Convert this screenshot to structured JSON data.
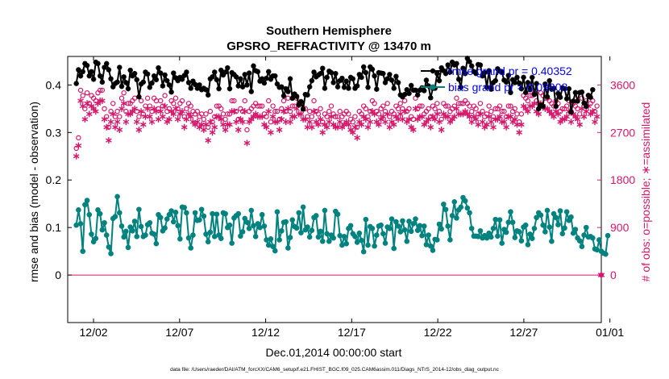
{
  "chart_data": {
    "type": "line",
    "title": "Southern Hemisphere",
    "subtitle": "GPSRO_REFRACTIVITY @ 13470 m",
    "xlabel": "Dec.01,2014 00:00:00 start",
    "ylabel": "rmse and bias (model - observation)",
    "y2label": "# of obs: o=possible; ∗=assimilated",
    "footer": "data file: /Users/raeder/DAI/ATM_forcXX/CAM6_setup/f.e21.FHIST_BGC.f09_025.CAM6assim.011/Diags_NTrS_2014-12/obs_diag_output.nc",
    "xlim": [
      0.5,
      31.5
    ],
    "ylim": [
      -0.1,
      0.46
    ],
    "y2lim": [
      -900,
      4140
    ],
    "x_ticks": [
      2,
      7,
      12,
      17,
      22,
      27,
      32
    ],
    "x_tick_labels": [
      "12/02",
      "12/07",
      "12/12",
      "12/17",
      "12/22",
      "12/27",
      "01/01"
    ],
    "y_ticks": [
      0,
      0.1,
      0.2,
      0.3,
      0.4
    ],
    "y_tick_labels": [
      "0",
      "0.1",
      "0.2",
      "0.3",
      "0.4"
    ],
    "y2_ticks": [
      0,
      900,
      1800,
      2700,
      3600
    ],
    "y2_tick_labels": [
      "0",
      "900",
      "1800",
      "2700",
      "3600"
    ],
    "legend": [
      {
        "label": "rmse grand pr = 0.40352",
        "color": "#000000"
      },
      {
        "label": "bias grand pr = 0.09908",
        "color": "#00827f"
      }
    ],
    "legend_text_color": "#0000ff",
    "colors": {
      "rmse": "#000000",
      "bias": "#00827f",
      "obs": "#d6176b",
      "zero": "#d6176b"
    },
    "rmse": {
      "name": "rmse",
      "values": [
        0.403,
        0.432,
        0.419,
        0.428,
        0.445,
        0.441,
        0.419,
        0.428,
        0.412,
        0.448,
        0.445,
        0.419,
        0.406,
        0.437,
        0.445,
        0.432,
        0.413,
        0.396,
        0.403,
        0.406,
        0.437,
        0.397,
        0.417,
        0.405,
        0.392,
        0.431,
        0.419,
        0.424,
        0.411,
        0.375,
        0.402,
        0.406,
        0.427,
        0.423,
        0.395,
        0.404,
        0.419,
        0.411,
        0.436,
        0.425,
        0.398,
        0.421,
        0.409,
        0.4,
        0.385,
        0.425,
        0.415,
        0.409,
        0.416,
        0.412,
        0.42,
        0.427,
        0.405,
        0.393,
        0.408,
        0.401,
        0.393,
        0.4,
        0.39,
        0.393,
        0.39,
        0.379,
        0.413,
        0.417,
        0.427,
        0.411,
        0.392,
        0.431,
        0.421,
        0.427,
        0.436,
        0.392,
        0.426,
        0.422,
        0.417,
        0.398,
        0.413,
        0.396,
        0.422,
        0.4,
        0.425,
        0.386,
        0.44,
        0.43,
        0.428,
        0.408,
        0.413,
        0.404,
        0.414,
        0.428,
        0.412,
        0.419,
        0.419,
        0.402,
        0.395,
        0.396,
        0.377,
        0.392,
        0.386,
        0.413,
        0.372,
        0.381,
        0.376,
        0.358,
        0.365,
        0.349,
        0.38,
        0.379,
        0.396,
        0.409,
        0.427,
        0.417,
        0.421,
        0.424,
        0.435,
        0.393,
        0.416,
        0.429,
        0.426,
        0.405,
        0.424,
        0.396,
        0.409,
        0.414,
        0.395,
        0.408,
        0.393,
        0.416,
        0.413,
        0.393,
        0.398,
        0.422,
        0.416,
        0.438,
        0.426,
        0.395,
        0.438,
        0.433,
        0.419,
        0.391,
        0.426,
        0.425,
        0.424,
        0.405,
        0.413,
        0.422,
        0.41,
        0.393,
        0.418,
        0.405,
        0.379,
        0.375,
        0.38,
        0.39,
        0.382,
        0.399,
        0.389,
        0.389,
        0.379,
        0.389,
        0.394,
        0.388,
        0.41,
        0.398,
        0.373,
        0.393,
        0.393,
        0.424,
        0.409,
        0.436,
        0.43,
        0.424,
        0.442,
        0.427,
        0.448,
        0.442,
        0.445,
        0.412,
        0.395,
        0.435,
        0.424,
        0.456,
        0.449,
        0.44,
        0.428,
        0.424,
        0.443,
        0.442,
        0.419,
        0.426,
        0.395,
        0.43,
        0.391,
        0.405,
        0.409,
        0.434,
        0.429,
        0.427,
        0.41,
        0.406,
        0.42,
        0.384,
        0.411,
        0.405,
        0.416,
        0.404,
        0.392,
        0.416,
        0.384,
        0.405,
        0.39,
        0.416,
        0.38,
        0.403,
        0.35,
        0.358,
        0.355,
        0.402,
        0.375,
        0.409,
        0.391,
        0.393,
        0.355,
        0.382,
        0.374,
        0.394,
        0.392,
        0.371,
        0.392,
        0.343,
        0.366,
        0.384,
        0.366,
        0.384,
        0.385,
        0.362,
        0.355,
        0.378,
        0.374,
        0.39
      ]
    },
    "bias": {
      "name": "bias",
      "values": [
        0.105,
        0.137,
        0.108,
        0.05,
        0.148,
        0.157,
        0.127,
        0.086,
        0.07,
        0.077,
        0.137,
        0.129,
        0.095,
        0.11,
        0.084,
        0.059,
        0.045,
        0.119,
        0.123,
        0.165,
        0.131,
        0.103,
        0.08,
        0.092,
        0.058,
        0.101,
        0.093,
        0.113,
        0.081,
        0.138,
        0.102,
        0.081,
        0.084,
        0.106,
        0.11,
        0.088,
        0.086,
        0.066,
        0.127,
        0.121,
        0.093,
        0.099,
        0.118,
        0.127,
        0.135,
        0.112,
        0.132,
        0.104,
        0.076,
        0.143,
        0.142,
        0.131,
        0.078,
        0.057,
        0.084,
        0.131,
        0.115,
        0.116,
        0.138,
        0.124,
        0.086,
        0.07,
        0.09,
        0.129,
        0.081,
        0.128,
        0.084,
        0.077,
        0.131,
        0.129,
        0.1,
        0.105,
        0.067,
        0.12,
        0.125,
        0.129,
        0.082,
        0.091,
        0.119,
        0.111,
        0.098,
        0.136,
        0.104,
        0.081,
        0.108,
        0.1,
        0.127,
        0.103,
        0.074,
        0.063,
        0.076,
        0.06,
        0.051,
        0.133,
        0.074,
        0.093,
        0.111,
        0.112,
        0.057,
        0.079,
        0.116,
        0.102,
        0.099,
        0.131,
        0.089,
        0.143,
        0.095,
        0.101,
        0.08,
        0.094,
        0.121,
        0.125,
        0.08,
        0.092,
        0.071,
        0.136,
        0.087,
        0.071,
        0.084,
        0.078,
        0.134,
        0.128,
        0.083,
        0.063,
        0.081,
        0.066,
        0.098,
        0.104,
        0.087,
        0.081,
        0.069,
        0.088,
        0.073,
        0.049,
        0.117,
        0.063,
        0.102,
        0.098,
        0.061,
        0.084,
        0.103,
        0.105,
        0.087,
        0.067,
        0.101,
        0.098,
        0.118,
        0.056,
        0.112,
        0.103,
        0.091,
        0.114,
        0.095,
        0.071,
        0.113,
        0.092,
        0.108,
        0.118,
        0.094,
        0.104,
        0.083,
        0.103,
        0.064,
        0.084,
        0.061,
        0.052,
        0.075,
        0.074,
        0.107,
        0.097,
        0.149,
        0.138,
        0.103,
        0.074,
        0.125,
        0.154,
        0.12,
        0.137,
        0.143,
        0.163,
        0.156,
        0.141,
        0.131,
        0.098,
        0.082,
        0.082,
        0.081,
        0.093,
        0.078,
        0.083,
        0.078,
        0.088,
        0.08,
        0.098,
        0.117,
        0.082,
        0.116,
        0.067,
        0.096,
        0.09,
        0.111,
        0.133,
        0.111,
        0.079,
        0.093,
        0.091,
        0.072,
        0.101,
        0.105,
        0.064,
        0.086,
        0.077,
        0.098,
        0.121,
        0.131,
        0.126,
        0.105,
        0.091,
        0.136,
        0.101,
        0.071,
        0.129,
        0.121,
        0.106,
        0.135,
        0.087,
        0.099,
        0.133,
        0.115,
        0.122,
        0.088,
        0.096,
        0.078,
        0.072,
        0.06,
        0.084,
        0.1,
        0.08,
        0.081,
        0.078,
        0.055,
        0.053,
        0.074,
        0.05,
        0.046,
        0.044,
        0.083
      ]
    },
    "obs_possible": {
      "name": "possible",
      "values": [
        2400,
        2600,
        3500,
        3400,
        3150,
        3450,
        3250,
        3400,
        3350,
        3300,
        3450,
        3500,
        3500,
        3150,
        3000,
        2800,
        3100,
        3250,
        3000,
        3100,
        3000,
        3350,
        3450,
        3100,
        3250,
        3250,
        3300,
        3350,
        3100,
        3000,
        3300,
        3050,
        3200,
        3350,
        3200,
        3100,
        3350,
        3300,
        3150,
        3300,
        3200,
        3400,
        3100,
        3150,
        3300,
        3250,
        3350,
        3150,
        3250,
        3300,
        3000,
        3150,
        3250,
        3200,
        3100,
        3050,
        3100,
        3000,
        3050,
        2950,
        3050,
        2800,
        3100,
        2900,
        3000,
        3200,
        3200,
        3150,
        3050,
        2950,
        3050,
        3050,
        3300,
        3300,
        3100,
        2950,
        3150,
        3100,
        3300,
        2750,
        3100,
        3150,
        3200,
        3250,
        3200,
        3200,
        3200,
        3050,
        3000,
        3300,
        2900,
        3200,
        3100,
        3100,
        2950,
        3150,
        3300,
        3100,
        3350,
        3100,
        3200,
        3200,
        3350,
        3250,
        3250,
        3150,
        3150,
        3000,
        3100,
        3000,
        3300,
        3100,
        3050,
        3150,
        2900,
        3050,
        3000,
        3100,
        3200,
        3050,
        3000,
        3000,
        3100,
        3000,
        3050,
        3100,
        3050,
        2950,
        2900,
        3000,
        2800,
        3100,
        3050,
        3200,
        3150,
        3000,
        3100,
        3300,
        3250,
        3100,
        3050,
        3150,
        3200,
        3100,
        3250,
        3000,
        3100,
        3050,
        3200,
        3150,
        3250,
        3150,
        3300,
        3100,
        3150,
        3000,
        2950,
        3350,
        3150,
        3200,
        3200,
        3050,
        3100,
        3150,
        3000,
        3200,
        3150,
        3250,
        3100,
        2950,
        3250,
        3200,
        3200,
        3100,
        3150,
        3200,
        3350,
        3250,
        3250,
        3250,
        3300,
        3250,
        3200,
        3100,
        3200,
        3150,
        3050,
        3250,
        3100,
        3000,
        3050,
        3200,
        3100,
        3000,
        3150,
        3150,
        3200,
        3100,
        3100,
        3000,
        3200,
        3200,
        3100,
        3150,
        3050,
        2900,
        3050,
        3400,
        3350,
        3300,
        3400,
        3400,
        3450,
        3300,
        3250,
        3450,
        3400,
        3350,
        3350,
        3300,
        3250,
        3200,
        3300,
        3250,
        3100,
        3150,
        3150,
        3200,
        3300,
        3100,
        3250,
        3200,
        3150,
        3050,
        3350,
        3200,
        3300,
        3400,
        3250,
        3300,
        3100,
        3200
      ]
    },
    "obs_assimilated": {
      "name": "assimilated",
      "values": [
        2250,
        2450,
        3300,
        3200,
        2950,
        3250,
        3050,
        3200,
        3150,
        3100,
        3250,
        3300,
        3300,
        2950,
        2800,
        2550,
        2900,
        3050,
        2800,
        2900,
        2750,
        3150,
        3250,
        2900,
        3050,
        3050,
        3100,
        3150,
        2900,
        2750,
        3100,
        2850,
        3000,
        3150,
        3000,
        2900,
        3150,
        3100,
        2950,
        3100,
        3000,
        3200,
        2900,
        2950,
        3100,
        3050,
        3150,
        2950,
        3050,
        3100,
        2800,
        2950,
        3050,
        3000,
        2900,
        2850,
        2900,
        2800,
        2850,
        2750,
        2850,
        2550,
        2900,
        2700,
        2800,
        3000,
        3000,
        2950,
        2850,
        2750,
        2850,
        2850,
        3100,
        3100,
        2900,
        2750,
        2950,
        2900,
        3100,
        2500,
        2900,
        2950,
        3000,
        3050,
        3000,
        3000,
        3000,
        2850,
        2800,
        3100,
        2700,
        3000,
        2900,
        2900,
        2750,
        2950,
        3100,
        2900,
        3150,
        2900,
        3000,
        3000,
        3150,
        3050,
        3050,
        2950,
        2950,
        2800,
        2900,
        2800,
        3100,
        2900,
        2850,
        2950,
        2700,
        2850,
        2800,
        2900,
        3000,
        2850,
        2800,
        2800,
        2900,
        2800,
        2850,
        2900,
        2850,
        2750,
        2700,
        2800,
        2600,
        2900,
        2850,
        3000,
        2950,
        2800,
        2900,
        3100,
        3050,
        2900,
        2850,
        2950,
        3000,
        2900,
        3050,
        2800,
        2900,
        2850,
        3000,
        2950,
        3050,
        2950,
        3100,
        2900,
        2950,
        2800,
        2750,
        3150,
        2950,
        3000,
        3000,
        2850,
        2900,
        2950,
        2800,
        3000,
        2950,
        3050,
        2900,
        2750,
        3050,
        3000,
        3000,
        2900,
        2950,
        3000,
        3150,
        3050,
        3050,
        3050,
        3100,
        3050,
        3000,
        2900,
        3000,
        2950,
        2850,
        3050,
        2900,
        2800,
        2850,
        3000,
        2900,
        2800,
        2950,
        2950,
        3000,
        2900,
        2900,
        2800,
        3000,
        3000,
        2900,
        2950,
        2850,
        2700,
        2850,
        3200,
        3150,
        3100,
        3200,
        3200,
        3250,
        3100,
        3050,
        3250,
        3200,
        3150,
        3150,
        3100,
        3050,
        3000,
        3100,
        3050,
        2900,
        2950,
        2950,
        3000,
        3100,
        2900,
        3050,
        3000,
        2950,
        2850,
        3150,
        3000,
        3100,
        3200,
        3050,
        3100,
        2900,
        3000
      ]
    }
  }
}
